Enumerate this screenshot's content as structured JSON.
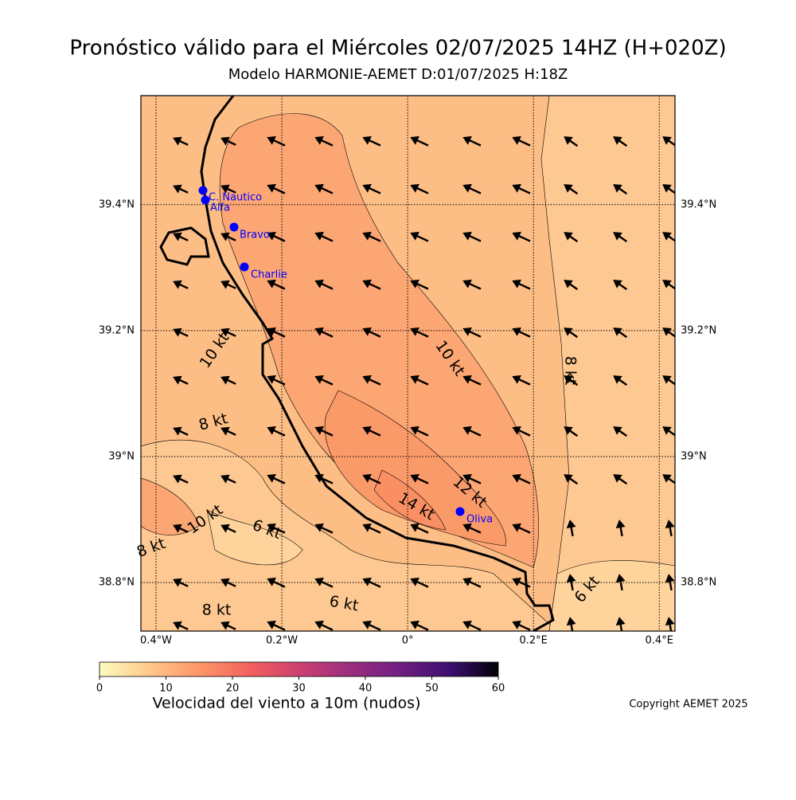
{
  "header": {
    "title": "Pronóstico válido para el Miércoles 02/07/2025 14HZ (H+020Z)",
    "subtitle": "Modelo HARMONIE-AEMET D:01/07/2025 H:18Z"
  },
  "map": {
    "lonlim": [
      -0.424,
      0.425
    ],
    "latlim": [
      38.723,
      39.573
    ],
    "lonticks": [
      {
        "value": -0.4,
        "label": "0.4°W"
      },
      {
        "value": -0.2,
        "label": "0.2°W"
      },
      {
        "value": 0,
        "label": "0°"
      },
      {
        "value": 0.2,
        "label": "0.2°E"
      },
      {
        "value": 0.4,
        "label": "0.4°E"
      }
    ],
    "latticks": [
      {
        "value": 39.4,
        "label": "39.4°N"
      },
      {
        "value": 39.2,
        "label": "39.2°N"
      },
      {
        "value": 39,
        "label": "39°N"
      },
      {
        "value": 38.8,
        "label": "38.8°N"
      }
    ],
    "stations": [
      "C. Nautico",
      "Alfa",
      "Bravo",
      "Charlie",
      "Oliva"
    ],
    "contour_labels": [
      "10 kt",
      "8 kt",
      "10 kt",
      "6 kt",
      "8 kt",
      "8 kt",
      "6 kt",
      "14 kt",
      "12 kt",
      "10 kt",
      "8 kt",
      "6 kt"
    ]
  },
  "colorbar": {
    "label": "Velocidad del viento a 10m (nudos)",
    "lim": [
      0,
      60
    ],
    "ticks": [
      0,
      10,
      20,
      30,
      40,
      50,
      60
    ]
  },
  "footer": {
    "copyright": "Copyright AEMET 2025"
  }
}
